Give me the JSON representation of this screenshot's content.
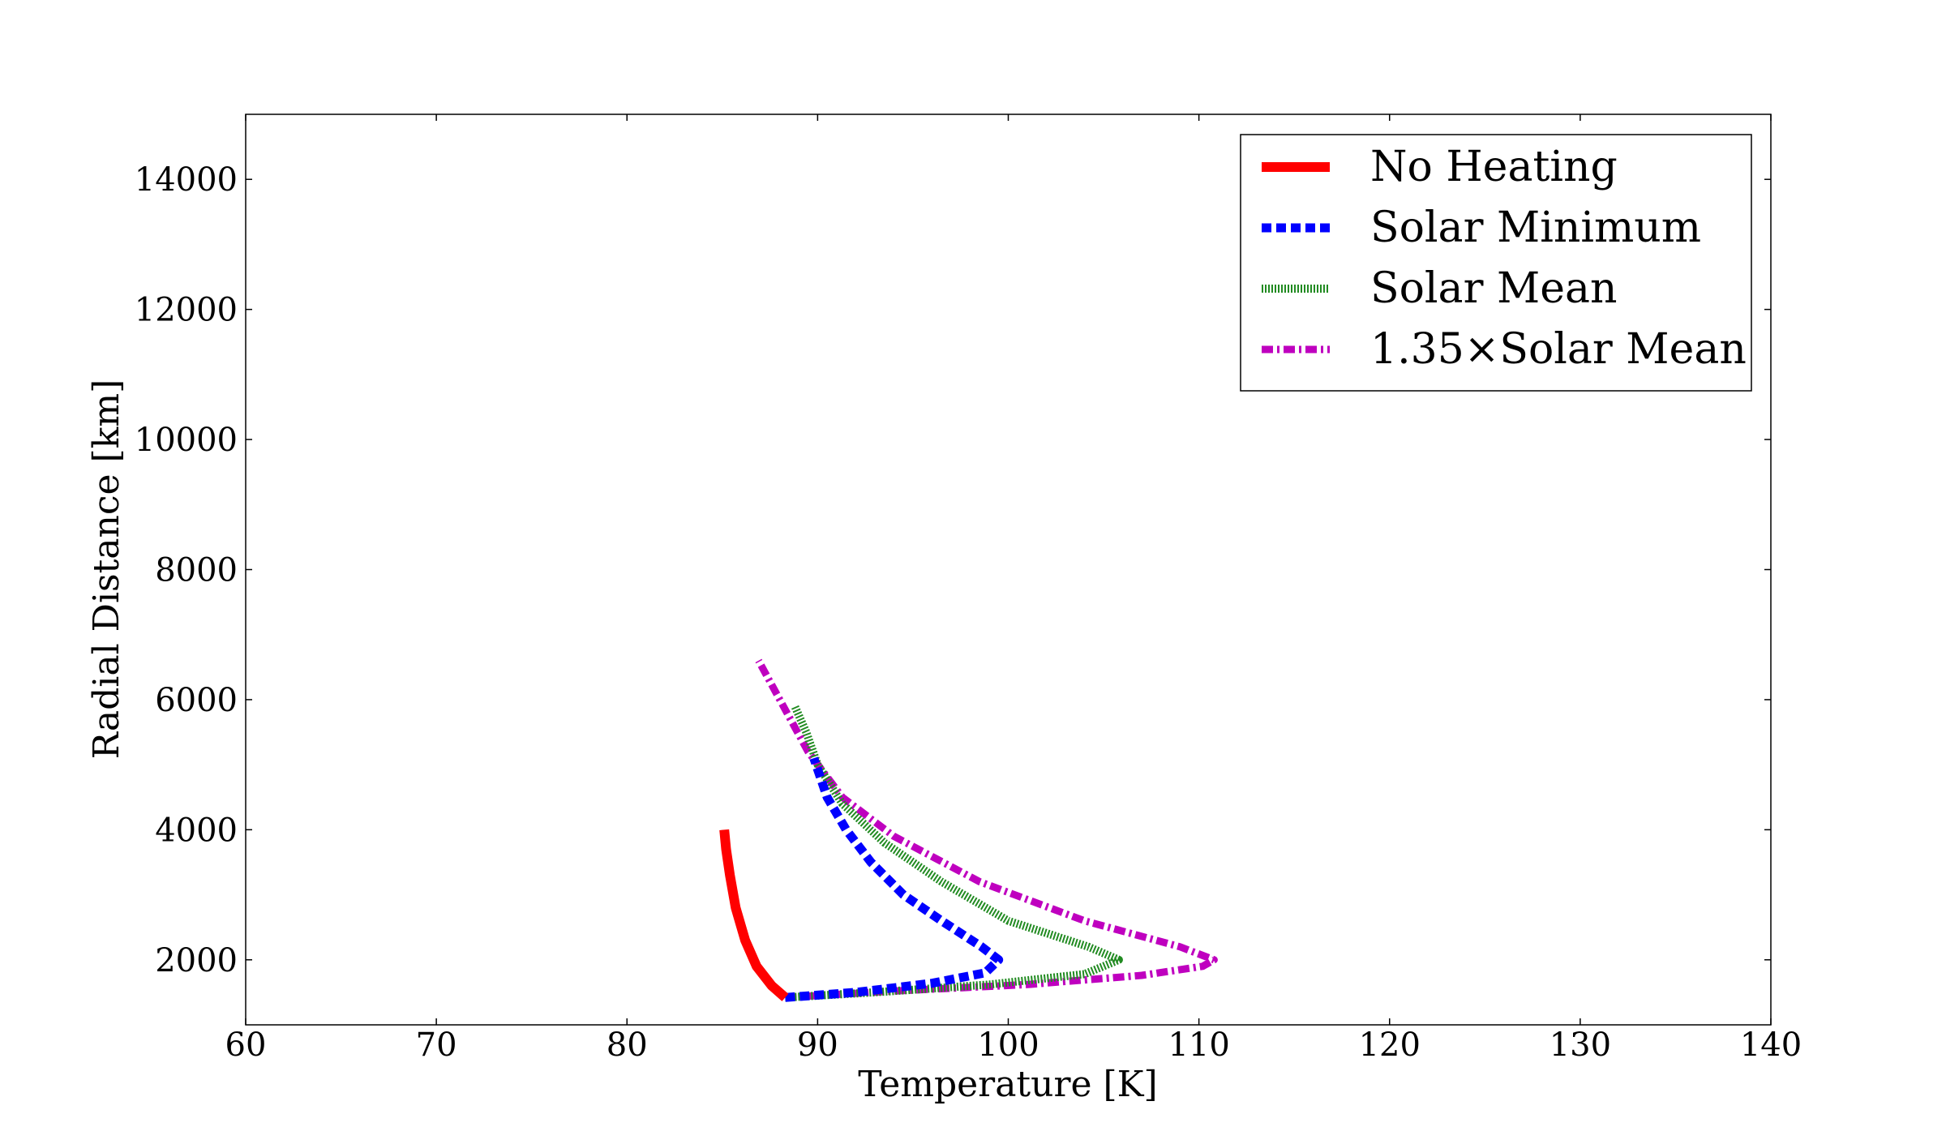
{
  "chart_data": {
    "type": "line",
    "title": "",
    "xlabel": "Temperature [K]",
    "ylabel": "Radial Distance [km]",
    "xlim": [
      60,
      140
    ],
    "ylim": [
      1000,
      15000
    ],
    "xticks": [
      60,
      70,
      80,
      90,
      100,
      110,
      120,
      130,
      140
    ],
    "yticks": [
      2000,
      4000,
      6000,
      8000,
      10000,
      12000,
      14000
    ],
    "grid": false,
    "legend_position": "top-right",
    "series": [
      {
        "name": "No Heating",
        "color": "#ff0000",
        "style": "solid",
        "points": [
          [
            88.3,
            1420
          ],
          [
            87.6,
            1600
          ],
          [
            86.8,
            1900
          ],
          [
            86.2,
            2300
          ],
          [
            85.7,
            2800
          ],
          [
            85.4,
            3300
          ],
          [
            85.2,
            3700
          ],
          [
            85.1,
            4000
          ]
        ]
      },
      {
        "name": "Solar Minimum",
        "color": "#0000ff",
        "style": "dashed",
        "points": [
          [
            88.3,
            1420
          ],
          [
            92,
            1500
          ],
          [
            96,
            1640
          ],
          [
            98.8,
            1800
          ],
          [
            99.5,
            2000
          ],
          [
            98.6,
            2200
          ],
          [
            96.5,
            2600
          ],
          [
            94.5,
            3000
          ],
          [
            92.8,
            3500
          ],
          [
            91.5,
            4000
          ],
          [
            90.5,
            4500
          ],
          [
            89.8,
            5100
          ]
        ]
      },
      {
        "name": "Solar Mean",
        "color": "#228b22",
        "style": "dotted",
        "points": [
          [
            88.3,
            1420
          ],
          [
            93,
            1500
          ],
          [
            99,
            1620
          ],
          [
            104,
            1780
          ],
          [
            105.8,
            2000
          ],
          [
            104.2,
            2200
          ],
          [
            100,
            2600
          ],
          [
            96.5,
            3200
          ],
          [
            93.5,
            3800
          ],
          [
            91.3,
            4400
          ],
          [
            90,
            5000
          ],
          [
            89.4,
            5500
          ],
          [
            88.8,
            5900
          ]
        ]
      },
      {
        "name": "1.35×Solar Mean",
        "color": "#bf00bf",
        "style": "dashdot",
        "points": [
          [
            88.3,
            1420
          ],
          [
            94,
            1520
          ],
          [
            101,
            1620
          ],
          [
            107,
            1760
          ],
          [
            110.2,
            1900
          ],
          [
            110.8,
            2000
          ],
          [
            109,
            2200
          ],
          [
            104,
            2600
          ],
          [
            98.5,
            3200
          ],
          [
            94,
            3900
          ],
          [
            91.3,
            4500
          ],
          [
            89.5,
            5200
          ],
          [
            88.2,
            5900
          ],
          [
            86.9,
            6600
          ]
        ]
      }
    ]
  }
}
